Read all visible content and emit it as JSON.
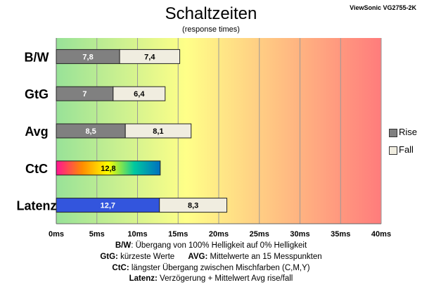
{
  "header": {
    "title": "Schaltzeiten",
    "subtitle": "(response times)",
    "model": "ViewSonic VG2755-2K"
  },
  "legend": [
    {
      "label": "Rise",
      "color": "#808080"
    },
    {
      "label": "Fall",
      "color": "#f0ede0"
    }
  ],
  "notes": [
    {
      "k1": "B/W",
      "t1": ":  Übergang von 100% Helligkeit auf 0% Helligkeit"
    },
    {
      "k1": "GtG:",
      "t1": " kürzeste  Werte",
      "k2": "AVG:",
      "t2": " Mittelwerte  an 15 Messpunkten"
    },
    {
      "k1": "CtC:",
      "t1": " längster Übergang  zwischen Mischfarben (C,M,Y)"
    },
    {
      "k1": "Latenz:",
      "t1": " Verzögerung  + Mittelwert  Avg rise/fall"
    }
  ],
  "colors": {
    "rise": "#808080",
    "fall": "#f0ede0",
    "latenz_rise": "#3355dd",
    "grid": "#9a9a9a",
    "bg_start": "#98e298",
    "bg_mid": "#ffff88",
    "bg_end": "#ff7c7c",
    "ctc_gradient": [
      "#ff1493",
      "#ff8c00",
      "#ffff00",
      "#00c8a0",
      "#0070c0"
    ]
  },
  "chart_data": {
    "type": "bar",
    "orientation": "horizontal",
    "stacked": true,
    "categories": [
      "B/W",
      "GtG",
      "Avg",
      "CtC",
      "Latenz"
    ],
    "series": [
      {
        "name": "Rise",
        "values": [
          7.8,
          7,
          8.5,
          12.8,
          12.7
        ],
        "labels": [
          "7,8",
          "7",
          "8,5",
          "12,8",
          "12,7"
        ]
      },
      {
        "name": "Fall",
        "values": [
          7.4,
          6.4,
          8.1,
          null,
          8.3
        ],
        "labels": [
          "7,4",
          "6,4",
          "8,1",
          "",
          "8,3"
        ]
      }
    ],
    "x_ticks": [
      0,
      5,
      10,
      15,
      20,
      25,
      30,
      35,
      40
    ],
    "x_tick_labels": [
      "0ms",
      "5ms",
      "10ms",
      "15ms",
      "20ms",
      "25ms",
      "30ms",
      "35ms",
      "40ms"
    ],
    "xlim": [
      0,
      40
    ],
    "grid": true,
    "legend_position": "right"
  }
}
